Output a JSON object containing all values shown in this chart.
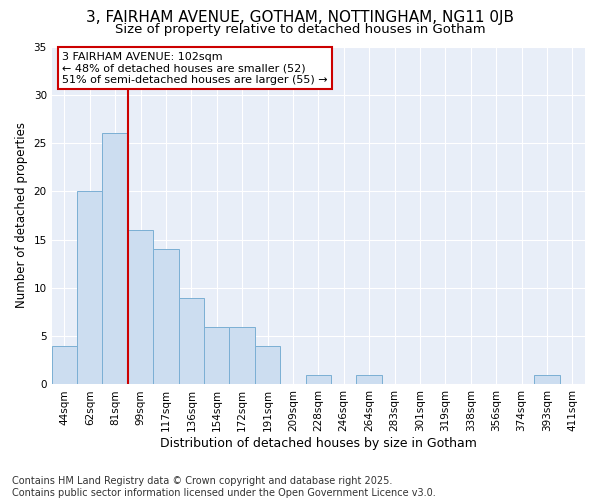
{
  "title1": "3, FAIRHAM AVENUE, GOTHAM, NOTTINGHAM, NG11 0JB",
  "title2": "Size of property relative to detached houses in Gotham",
  "xlabel": "Distribution of detached houses by size in Gotham",
  "ylabel": "Number of detached properties",
  "categories": [
    "44sqm",
    "62sqm",
    "81sqm",
    "99sqm",
    "117sqm",
    "136sqm",
    "154sqm",
    "172sqm",
    "191sqm",
    "209sqm",
    "228sqm",
    "246sqm",
    "264sqm",
    "283sqm",
    "301sqm",
    "319sqm",
    "338sqm",
    "356sqm",
    "374sqm",
    "393sqm",
    "411sqm"
  ],
  "values": [
    4,
    20,
    26,
    16,
    14,
    9,
    6,
    6,
    4,
    0,
    1,
    0,
    1,
    0,
    0,
    0,
    0,
    0,
    0,
    1,
    0
  ],
  "bar_color": "#ccddf0",
  "bar_edge_color": "#7bafd4",
  "vline_x_index": 3,
  "vline_color": "#cc0000",
  "annotation_title": "3 FAIRHAM AVENUE: 102sqm",
  "annotation_line1": "← 48% of detached houses are smaller (52)",
  "annotation_line2": "51% of semi-detached houses are larger (55) →",
  "annotation_box_color": "#ffffff",
  "annotation_box_edge": "#cc0000",
  "ylim": [
    0,
    35
  ],
  "yticks": [
    0,
    5,
    10,
    15,
    20,
    25,
    30,
    35
  ],
  "plot_bg_color": "#e8eef8",
  "fig_bg_color": "#ffffff",
  "grid_color": "#ffffff",
  "footer": "Contains HM Land Registry data © Crown copyright and database right 2025.\nContains public sector information licensed under the Open Government Licence v3.0.",
  "title1_fontsize": 11,
  "title2_fontsize": 9.5,
  "xlabel_fontsize": 9,
  "ylabel_fontsize": 8.5,
  "tick_fontsize": 7.5,
  "footer_fontsize": 7,
  "annotation_fontsize": 8
}
